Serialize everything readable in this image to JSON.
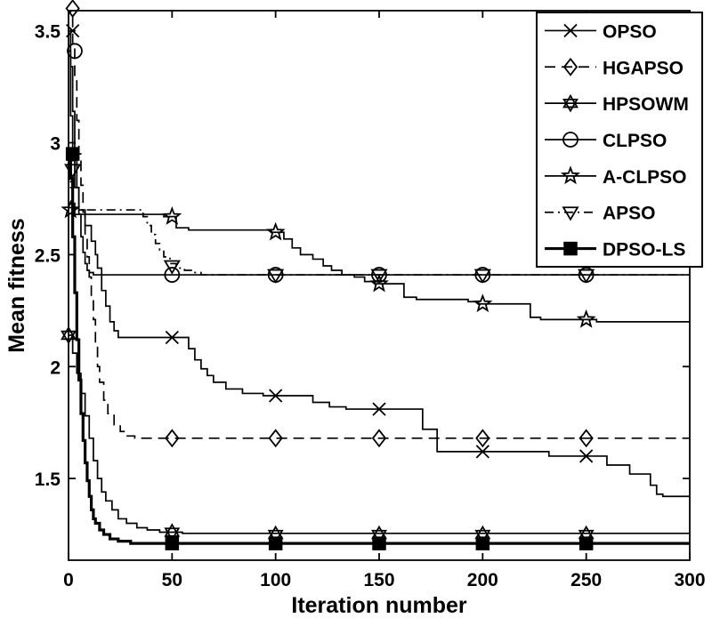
{
  "figure": {
    "background_color": "#ffffff",
    "foreground_color": "#000000"
  },
  "chart_data": {
    "type": "line",
    "title": "",
    "xlabel": "Iteration number",
    "ylabel": "Mean fitness",
    "xlim": [
      0,
      300
    ],
    "ylim": [
      1.135,
      3.59
    ],
    "xticks": [
      0,
      50,
      100,
      150,
      200,
      250,
      300
    ],
    "xtick_labels": [
      "0",
      "50",
      "100",
      "150",
      "200",
      "250",
      "300"
    ],
    "yticks": [
      1.5,
      2.0,
      2.5,
      3.0,
      3.5
    ],
    "ytick_labels": [
      "1.5",
      "2",
      "2.5",
      "3",
      "3.5"
    ],
    "grid": false,
    "legend_position": "top-right",
    "series": [
      {
        "name": "OPSO",
        "marker": "x",
        "line_style": "solid",
        "line_width": 1.7,
        "points": [
          [
            0,
            3.5
          ],
          [
            1,
            3.12
          ],
          [
            2,
            2.92
          ],
          [
            3,
            2.8
          ],
          [
            5,
            2.7
          ],
          [
            8,
            2.63
          ],
          [
            11,
            2.56
          ],
          [
            13,
            2.5
          ],
          [
            14,
            2.44
          ],
          [
            16,
            2.34
          ],
          [
            18,
            2.27
          ],
          [
            20,
            2.2
          ],
          [
            22,
            2.16
          ],
          [
            24,
            2.13
          ],
          [
            56,
            2.13
          ],
          [
            58,
            2.08
          ],
          [
            61,
            2.03
          ],
          [
            64,
            1.99
          ],
          [
            67,
            1.96
          ],
          [
            70,
            1.93
          ],
          [
            76,
            1.9
          ],
          [
            84,
            1.88
          ],
          [
            94,
            1.87
          ],
          [
            116,
            1.87
          ],
          [
            118,
            1.84
          ],
          [
            126,
            1.82
          ],
          [
            134,
            1.81
          ],
          [
            168,
            1.81
          ],
          [
            171,
            1.72
          ],
          [
            176,
            1.72
          ],
          [
            178,
            1.62
          ],
          [
            229,
            1.62
          ],
          [
            232,
            1.6
          ],
          [
            257,
            1.6
          ],
          [
            260,
            1.56
          ],
          [
            268,
            1.56
          ],
          [
            271,
            1.52
          ],
          [
            279,
            1.52
          ],
          [
            281,
            1.47
          ],
          [
            284,
            1.43
          ],
          [
            287,
            1.42
          ],
          [
            300,
            1.42
          ]
        ],
        "marker_points": [
          [
            2,
            3.5
          ],
          [
            50,
            2.13
          ],
          [
            100,
            1.87
          ],
          [
            150,
            1.81
          ],
          [
            200,
            1.62
          ],
          [
            250,
            1.6
          ]
        ]
      },
      {
        "name": "HGAPSO",
        "marker": "diamond",
        "line_style": "dashed",
        "line_width": 1.7,
        "points": [
          [
            0,
            3.62
          ],
          [
            1,
            3.58
          ],
          [
            2,
            3.44
          ],
          [
            3,
            3.28
          ],
          [
            4,
            3.1
          ],
          [
            5,
            2.95
          ],
          [
            6,
            2.81
          ],
          [
            7,
            2.69
          ],
          [
            8,
            2.58
          ],
          [
            9,
            2.49
          ],
          [
            10,
            2.4
          ],
          [
            11,
            2.31
          ],
          [
            12,
            2.21
          ],
          [
            13,
            2.1
          ],
          [
            14,
            2.0
          ],
          [
            15,
            1.93
          ],
          [
            17,
            1.85
          ],
          [
            19,
            1.79
          ],
          [
            22,
            1.74
          ],
          [
            25,
            1.71
          ],
          [
            28,
            1.69
          ],
          [
            32,
            1.68
          ],
          [
            300,
            1.68
          ]
        ],
        "marker_points": [
          [
            2,
            3.6
          ],
          [
            50,
            1.68
          ],
          [
            100,
            1.68
          ],
          [
            150,
            1.68
          ],
          [
            200,
            1.68
          ],
          [
            250,
            1.68
          ]
        ]
      },
      {
        "name": "HPSOWM",
        "marker": "hexagram",
        "line_style": "solid",
        "line_width": 1.7,
        "points": [
          [
            0,
            2.14
          ],
          [
            2,
            2.06
          ],
          [
            4,
            1.97
          ],
          [
            6,
            1.88
          ],
          [
            8,
            1.78
          ],
          [
            10,
            1.68
          ],
          [
            12,
            1.58
          ],
          [
            14,
            1.5
          ],
          [
            16,
            1.44
          ],
          [
            18,
            1.4
          ],
          [
            21,
            1.36
          ],
          [
            24,
            1.32
          ],
          [
            28,
            1.3
          ],
          [
            33,
            1.28
          ],
          [
            38,
            1.27
          ],
          [
            44,
            1.26
          ],
          [
            55,
            1.255
          ],
          [
            300,
            1.25
          ]
        ],
        "marker_points": [
          [
            0,
            2.14
          ],
          [
            50,
            1.26
          ],
          [
            100,
            1.25
          ],
          [
            150,
            1.25
          ],
          [
            200,
            1.25
          ],
          [
            250,
            1.25
          ]
        ]
      },
      {
        "name": "CLPSO",
        "marker": "circle",
        "line_style": "solid",
        "line_width": 1.7,
        "points": [
          [
            0,
            3.41
          ],
          [
            1,
            3.34
          ],
          [
            2,
            3.14
          ],
          [
            3,
            2.96
          ],
          [
            4,
            2.8
          ],
          [
            5,
            2.68
          ],
          [
            6,
            2.58
          ],
          [
            7,
            2.51
          ],
          [
            8,
            2.46
          ],
          [
            9,
            2.43
          ],
          [
            10,
            2.42
          ],
          [
            12,
            2.41
          ],
          [
            300,
            2.41
          ]
        ],
        "marker_points": [
          [
            3,
            3.41
          ],
          [
            50,
            2.41
          ],
          [
            100,
            2.41
          ],
          [
            150,
            2.41
          ],
          [
            200,
            2.41
          ],
          [
            250,
            2.41
          ]
        ]
      },
      {
        "name": "A-CLPSO",
        "marker": "pentagram",
        "line_style": "solid",
        "line_width": 1.7,
        "points": [
          [
            0,
            2.71
          ],
          [
            3,
            2.68
          ],
          [
            46,
            2.67
          ],
          [
            52,
            2.62
          ],
          [
            58,
            2.61
          ],
          [
            98,
            2.6
          ],
          [
            104,
            2.57
          ],
          [
            108,
            2.53
          ],
          [
            112,
            2.5
          ],
          [
            118,
            2.48
          ],
          [
            123,
            2.45
          ],
          [
            127,
            2.43
          ],
          [
            132,
            2.41
          ],
          [
            138,
            2.4
          ],
          [
            143,
            2.38
          ],
          [
            148,
            2.37
          ],
          [
            159,
            2.37
          ],
          [
            162,
            2.31
          ],
          [
            168,
            2.3
          ],
          [
            193,
            2.29
          ],
          [
            198,
            2.28
          ],
          [
            219,
            2.28
          ],
          [
            223,
            2.22
          ],
          [
            228,
            2.21
          ],
          [
            252,
            2.21
          ],
          [
            255,
            2.2
          ],
          [
            300,
            2.2
          ]
        ],
        "marker_points": [
          [
            1,
            2.7
          ],
          [
            50,
            2.67
          ],
          [
            100,
            2.6
          ],
          [
            150,
            2.37
          ],
          [
            200,
            2.28
          ],
          [
            250,
            2.21
          ]
        ]
      },
      {
        "name": "APSO",
        "marker": "triangle-down",
        "line_style": "dash-dot",
        "line_width": 1.7,
        "points": [
          [
            0,
            2.88
          ],
          [
            1,
            2.8
          ],
          [
            2,
            2.74
          ],
          [
            3,
            2.71
          ],
          [
            5,
            2.7
          ],
          [
            34,
            2.7
          ],
          [
            36,
            2.67
          ],
          [
            38,
            2.63
          ],
          [
            40,
            2.59
          ],
          [
            42,
            2.55
          ],
          [
            44,
            2.52
          ],
          [
            46,
            2.49
          ],
          [
            49,
            2.46
          ],
          [
            52,
            2.44
          ],
          [
            56,
            2.43
          ],
          [
            60,
            2.42
          ],
          [
            64,
            2.41
          ],
          [
            300,
            2.41
          ]
        ],
        "marker_points": [
          [
            2,
            2.88
          ],
          [
            50,
            2.45
          ],
          [
            100,
            2.41
          ],
          [
            150,
            2.41
          ],
          [
            200,
            2.41
          ],
          [
            250,
            2.41
          ]
        ]
      },
      {
        "name": "DPSO-LS",
        "marker": "square-filled",
        "line_style": "solid",
        "line_width": 3.2,
        "points": [
          [
            0,
            2.95
          ],
          [
            1,
            2.84
          ],
          [
            2,
            2.58
          ],
          [
            3,
            2.33
          ],
          [
            4,
            2.12
          ],
          [
            5,
            1.94
          ],
          [
            6,
            1.79
          ],
          [
            7,
            1.67
          ],
          [
            8,
            1.57
          ],
          [
            9,
            1.49
          ],
          [
            10,
            1.42
          ],
          [
            11,
            1.36
          ],
          [
            12,
            1.32
          ],
          [
            13,
            1.3
          ],
          [
            15,
            1.27
          ],
          [
            17,
            1.25
          ],
          [
            20,
            1.23
          ],
          [
            24,
            1.22
          ],
          [
            30,
            1.21
          ],
          [
            300,
            1.205
          ]
        ],
        "marker_points": [
          [
            2,
            2.95
          ],
          [
            50,
            1.21
          ],
          [
            100,
            1.21
          ],
          [
            150,
            1.21
          ],
          [
            200,
            1.21
          ],
          [
            250,
            1.21
          ]
        ]
      }
    ],
    "legend_entries": [
      "OPSO",
      "HGAPSO",
      "HPSOWM",
      "CLPSO",
      "A-CLPSO",
      "APSO",
      "DPSO-LS"
    ]
  }
}
